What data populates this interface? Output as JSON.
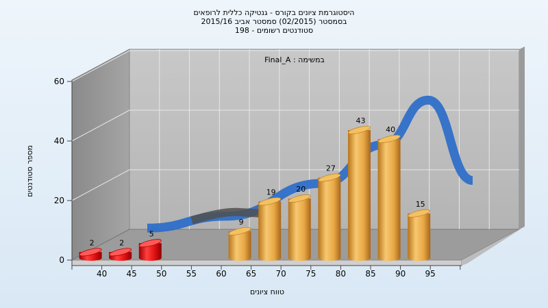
{
  "chart_data": {
    "type": "bar",
    "title_lines": [
      "היסטוגרמת ציונים בקורס - גנטיקה כללית לרופאים",
      "בסמסטר  (02/2015)  סמסטר אביב 2015/16",
      "סטודנטים רשומים - 198"
    ],
    "annotation": "במשימה : Final_A",
    "xlabel": "טווח ציונים",
    "ylabel": "מספר סטודנטים",
    "ylim": [
      0,
      60
    ],
    "yticks": [
      0,
      20,
      40,
      60
    ],
    "categories": [
      "40",
      "45",
      "50",
      "55",
      "60",
      "65",
      "70",
      "75",
      "80",
      "85",
      "90",
      "95"
    ],
    "values": [
      2,
      2,
      5,
      null,
      null,
      9,
      19,
      20,
      27,
      43,
      40,
      15
    ],
    "bar_colors": {
      "failing": "#e01010",
      "passing": "#f0b040"
    },
    "failing_categories": [
      "40",
      "45",
      "50"
    ],
    "trend_line": {
      "color_main": "#2f6fc8",
      "color_low": "#505050",
      "values": [
        5,
        9,
        20,
        33,
        48,
        21
      ]
    },
    "grid": true,
    "legend": "none"
  }
}
